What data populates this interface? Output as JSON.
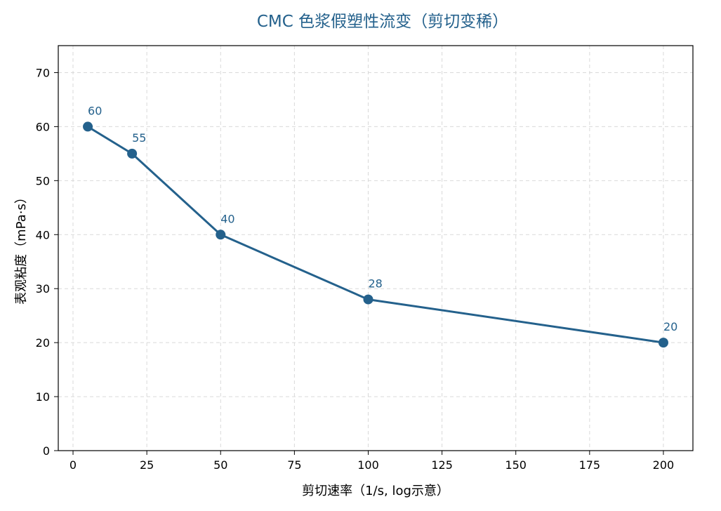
{
  "chart_data": {
    "type": "line",
    "title": "CMC 色浆假塑性流变（剪切变稀）",
    "xlabel": "剪切速率（1/s, log示意）",
    "ylabel": "表观粘度（mPa·s）",
    "xlim": [
      -5,
      210
    ],
    "ylim": [
      0,
      75
    ],
    "xticks": [
      0,
      25,
      50,
      75,
      100,
      125,
      150,
      175,
      200
    ],
    "yticks": [
      0,
      10,
      20,
      30,
      40,
      50,
      60,
      70
    ],
    "grid": true,
    "grid_style": "dashed",
    "legend": "none",
    "series": [
      {
        "x": [
          5,
          20,
          50,
          100,
          200
        ],
        "y": [
          60,
          55,
          40,
          28,
          20
        ],
        "labels": [
          "60",
          "55",
          "40",
          "28",
          "20"
        ],
        "color": "#24618c",
        "marker": "circle"
      }
    ]
  },
  "colors": {
    "line": "#24618c",
    "title": "#24618c",
    "grid": "#d9d9d9",
    "axis": "#000000"
  }
}
